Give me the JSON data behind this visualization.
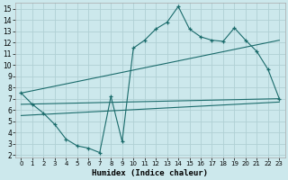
{
  "xlabel": "Humidex (Indice chaleur)",
  "bg_color": "#cce8ec",
  "line_color": "#1a6b6b",
  "grid_color": "#b0d0d4",
  "xlim": [
    -0.5,
    23.5
  ],
  "ylim": [
    1.8,
    15.5
  ],
  "xticks": [
    0,
    1,
    2,
    3,
    4,
    5,
    6,
    7,
    8,
    9,
    10,
    11,
    12,
    13,
    14,
    15,
    16,
    17,
    18,
    19,
    20,
    21,
    22,
    23
  ],
  "yticks": [
    2,
    3,
    4,
    5,
    6,
    7,
    8,
    9,
    10,
    11,
    12,
    13,
    14,
    15
  ],
  "main_x": [
    0,
    1,
    2,
    3,
    4,
    5,
    6,
    7,
    8,
    9,
    10,
    11,
    12,
    13,
    14,
    15,
    16,
    17,
    18,
    19,
    20,
    21,
    22,
    23
  ],
  "main_y": [
    7.5,
    6.5,
    5.7,
    4.7,
    3.4,
    2.8,
    2.6,
    2.2,
    7.2,
    3.2,
    11.5,
    12.2,
    13.2,
    13.8,
    15.2,
    13.2,
    12.5,
    12.2,
    12.1,
    13.3,
    12.2,
    11.2,
    9.6,
    7.0
  ],
  "env_lines": [
    {
      "x": [
        0,
        23
      ],
      "y": [
        7.5,
        12.2
      ]
    },
    {
      "x": [
        0,
        23
      ],
      "y": [
        6.5,
        7.0
      ]
    },
    {
      "x": [
        0,
        23
      ],
      "y": [
        5.5,
        6.7
      ]
    }
  ]
}
